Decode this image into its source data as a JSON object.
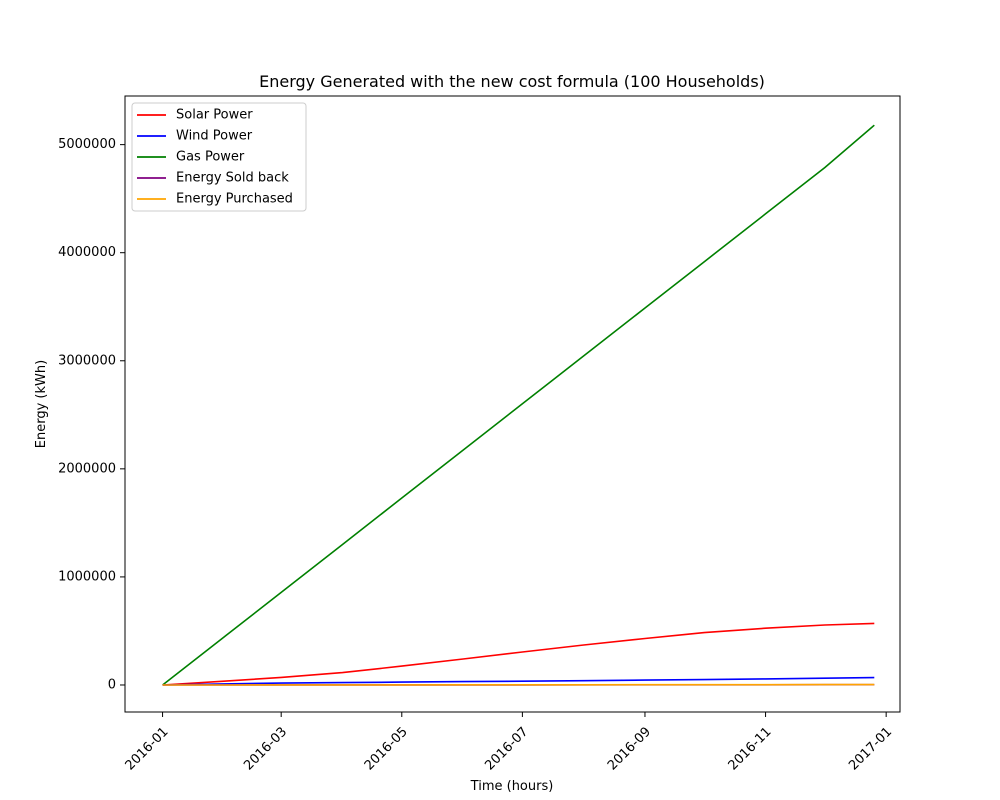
{
  "chart_data": {
    "type": "line",
    "title": "Energy Generated with the new cost formula (100 Households)",
    "xlabel": "Time (hours)",
    "ylabel": "Energy (kWh)",
    "xlim": [
      "2015-12-13",
      "2017-01-08"
    ],
    "ylim": [
      -250000,
      5450000
    ],
    "x_ticks": [
      "2016-01",
      "2016-03",
      "2016-05",
      "2016-07",
      "2016-09",
      "2016-11",
      "2017-01"
    ],
    "y_ticks": [
      0,
      1000000,
      2000000,
      3000000,
      4000000,
      5000000
    ],
    "y_tick_labels": [
      "0",
      "1000000",
      "2000000",
      "3000000",
      "4000000",
      "5000000"
    ],
    "grid": false,
    "legend_position": "top-left",
    "x": [
      "2016-01-01",
      "2016-02-01",
      "2016-03-01",
      "2016-04-01",
      "2016-05-01",
      "2016-06-01",
      "2016-07-01",
      "2016-08-01",
      "2016-09-01",
      "2016-10-01",
      "2016-11-01",
      "2016-12-01",
      "2016-12-26"
    ],
    "series": [
      {
        "name": "Solar Power",
        "color": "#ff0000",
        "values": [
          0,
          35000,
          70000,
          115000,
          175000,
          240000,
          305000,
          370000,
          430000,
          485000,
          525000,
          555000,
          570000
        ]
      },
      {
        "name": "Wind Power",
        "color": "#0000ff",
        "values": [
          0,
          10000,
          17000,
          22000,
          27000,
          31000,
          35000,
          40000,
          45000,
          50000,
          56000,
          63000,
          68000
        ]
      },
      {
        "name": "Gas Power",
        "color": "#008000",
        "values": [
          0,
          443000,
          857000,
          1300000,
          1730000,
          2173000,
          2602000,
          3045000,
          3488000,
          3917000,
          4360000,
          4788000,
          5180000
        ]
      },
      {
        "name": "Energy Sold back",
        "color": "#800080",
        "values": [
          0,
          200,
          400,
          600,
          800,
          1000,
          1200,
          1400,
          1600,
          1800,
          2000,
          2200,
          2400
        ]
      },
      {
        "name": "Energy Purchased",
        "color": "#ffa500",
        "values": [
          0,
          300,
          600,
          900,
          1200,
          1500,
          1800,
          2100,
          2400,
          2700,
          3000,
          3300,
          3500
        ]
      }
    ]
  }
}
